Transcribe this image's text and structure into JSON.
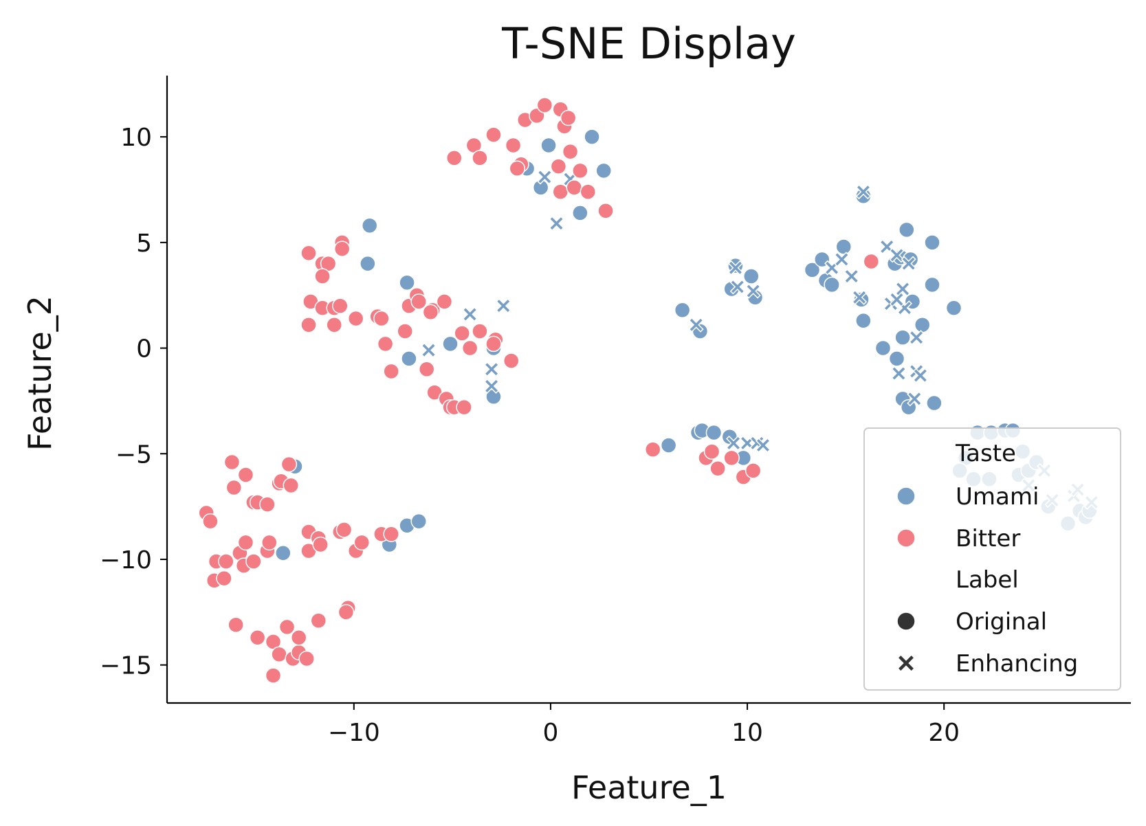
{
  "colors": {
    "umami": "#779ec4",
    "bitter": "#f37b84",
    "axis": "#000000",
    "legend_marker": "#333333"
  },
  "chart_data": {
    "type": "scatter",
    "title": "T-SNE Display",
    "xlabel": "Feature_1",
    "ylabel": "Feature_2",
    "xlim": [
      -19.5,
      29.5
    ],
    "ylim": [
      -16.8,
      12.9
    ],
    "xticks": [
      -10,
      0,
      10,
      20
    ],
    "yticks": [
      10,
      5,
      0,
      -5,
      -10,
      -15
    ],
    "grid": false,
    "legend": {
      "placement": "lower-right",
      "hue_title": "Taste",
      "hue_entries": [
        "Umami",
        "Bitter"
      ],
      "style_title": "Label",
      "style_entries": [
        "Original",
        "Enhancing"
      ]
    },
    "series": [
      {
        "name": "Umami",
        "marker": "Original",
        "points": [
          [
            -9.2,
            5.8
          ],
          [
            -9.3,
            4.0
          ],
          [
            -7.3,
            3.1
          ],
          [
            -7.2,
            -0.5
          ],
          [
            -5.1,
            0.2
          ],
          [
            -2.9,
            0.0
          ],
          [
            -2.9,
            -2.3
          ],
          [
            -1.2,
            8.5
          ],
          [
            -0.5,
            7.6
          ],
          [
            -0.1,
            9.6
          ],
          [
            1.5,
            6.4
          ],
          [
            2.1,
            10.0
          ],
          [
            2.7,
            8.4
          ],
          [
            -13.0,
            -5.6
          ],
          [
            -13.6,
            -9.7
          ],
          [
            -8.2,
            -9.3
          ],
          [
            -7.3,
            -8.4
          ],
          [
            -6.7,
            -8.2
          ],
          [
            6.0,
            -4.6
          ],
          [
            7.5,
            -4.0
          ],
          [
            7.7,
            -3.9
          ],
          [
            8.3,
            -4.0
          ],
          [
            9.1,
            -4.2
          ],
          [
            9.8,
            -5.2
          ],
          [
            6.7,
            1.8
          ],
          [
            7.6,
            0.8
          ],
          [
            9.2,
            2.8
          ],
          [
            10.2,
            3.4
          ],
          [
            10.4,
            2.4
          ],
          [
            9.4,
            3.9
          ],
          [
            13.3,
            3.7
          ],
          [
            13.8,
            4.2
          ],
          [
            14.0,
            3.2
          ],
          [
            14.3,
            3.0
          ],
          [
            14.9,
            4.8
          ],
          [
            15.8,
            2.3
          ],
          [
            15.9,
            1.3
          ],
          [
            15.9,
            7.2
          ],
          [
            16.9,
            0.0
          ],
          [
            17.5,
            4.0
          ],
          [
            17.8,
            4.3
          ],
          [
            17.9,
            0.5
          ],
          [
            18.1,
            5.6
          ],
          [
            18.3,
            4.2
          ],
          [
            18.4,
            2.2
          ],
          [
            18.9,
            1.1
          ],
          [
            19.4,
            5.0
          ],
          [
            19.4,
            3.0
          ],
          [
            19.5,
            -2.6
          ],
          [
            20.5,
            1.9
          ],
          [
            17.6,
            -0.5
          ],
          [
            17.9,
            -2.4
          ],
          [
            18.2,
            -2.8
          ],
          [
            21.7,
            -4.0
          ],
          [
            22.4,
            -4.0
          ],
          [
            23.1,
            -3.9
          ],
          [
            23.5,
            -3.9
          ],
          [
            24.0,
            -4.9
          ],
          [
            21.1,
            -5.2
          ],
          [
            20.8,
            -5.8
          ],
          [
            21.5,
            -6.2
          ],
          [
            22.3,
            -6.2
          ],
          [
            23.8,
            -6.0
          ],
          [
            24.3,
            -5.8
          ],
          [
            24.7,
            -5.4
          ],
          [
            25.3,
            -7.5
          ],
          [
            26.3,
            -8.3
          ],
          [
            26.9,
            -7.7
          ],
          [
            27.2,
            -8.0
          ],
          [
            27.4,
            -7.7
          ]
        ]
      },
      {
        "name": "Umami",
        "marker": "Enhancing",
        "points": [
          [
            -6.2,
            -0.1
          ],
          [
            -4.1,
            1.6
          ],
          [
            -3.0,
            -1.0
          ],
          [
            -3.0,
            -1.8
          ],
          [
            -2.4,
            2.0
          ],
          [
            -0.3,
            8.1
          ],
          [
            0.3,
            5.9
          ],
          [
            1.0,
            8.0
          ],
          [
            7.4,
            1.1
          ],
          [
            9.4,
            3.8
          ],
          [
            9.5,
            2.9
          ],
          [
            9.3,
            -4.5
          ],
          [
            10.0,
            -4.5
          ],
          [
            10.5,
            -4.5
          ],
          [
            10.8,
            -4.6
          ],
          [
            10.3,
            2.7
          ],
          [
            14.3,
            3.8
          ],
          [
            14.8,
            4.2
          ],
          [
            15.3,
            3.4
          ],
          [
            15.7,
            2.4
          ],
          [
            15.9,
            7.4
          ],
          [
            17.1,
            4.8
          ],
          [
            17.3,
            2.1
          ],
          [
            17.6,
            4.4
          ],
          [
            17.9,
            2.8
          ],
          [
            18.0,
            1.9
          ],
          [
            18.2,
            4.0
          ],
          [
            18.6,
            0.5
          ],
          [
            18.6,
            -1.1
          ],
          [
            18.8,
            -1.3
          ],
          [
            18.5,
            -2.4
          ],
          [
            17.7,
            -1.2
          ],
          [
            24.3,
            -6.5
          ],
          [
            25.1,
            -5.8
          ],
          [
            25.5,
            -7.2
          ],
          [
            26.6,
            -7.0
          ],
          [
            26.8,
            -6.7
          ],
          [
            27.5,
            -7.3
          ],
          [
            17.6,
            2.3
          ]
        ]
      },
      {
        "name": "Bitter",
        "marker": "Original",
        "points": [
          [
            -4.9,
            9.0
          ],
          [
            -3.9,
            9.6
          ],
          [
            -3.6,
            9.0
          ],
          [
            -2.9,
            10.1
          ],
          [
            -1.9,
            9.6
          ],
          [
            -1.5,
            8.7
          ],
          [
            -1.7,
            8.5
          ],
          [
            -1.3,
            10.8
          ],
          [
            -0.7,
            11.0
          ],
          [
            -0.3,
            11.5
          ],
          [
            0.5,
            11.3
          ],
          [
            0.7,
            10.5
          ],
          [
            0.9,
            10.9
          ],
          [
            1.0,
            9.3
          ],
          [
            0.4,
            8.6
          ],
          [
            1.5,
            8.4
          ],
          [
            0.5,
            7.4
          ],
          [
            1.2,
            7.6
          ],
          [
            1.9,
            7.4
          ],
          [
            2.8,
            6.5
          ],
          [
            -12.3,
            4.5
          ],
          [
            -11.6,
            4.0
          ],
          [
            -11.3,
            4.0
          ],
          [
            -11.6,
            3.4
          ],
          [
            -10.6,
            5.0
          ],
          [
            -10.6,
            4.7
          ],
          [
            -12.2,
            2.2
          ],
          [
            -11.6,
            1.9
          ],
          [
            -11.0,
            1.9
          ],
          [
            -10.7,
            2.0
          ],
          [
            -12.3,
            1.1
          ],
          [
            -11.0,
            1.1
          ],
          [
            -9.9,
            1.4
          ],
          [
            -8.8,
            1.5
          ],
          [
            -8.6,
            1.4
          ],
          [
            -7.2,
            2.0
          ],
          [
            -6.8,
            2.5
          ],
          [
            -6.7,
            2.2
          ],
          [
            -6.0,
            1.8
          ],
          [
            -6.1,
            1.7
          ],
          [
            -5.4,
            2.2
          ],
          [
            -7.4,
            0.8
          ],
          [
            -8.4,
            0.2
          ],
          [
            -8.1,
            -1.1
          ],
          [
            -6.3,
            -1.0
          ],
          [
            -4.5,
            0.7
          ],
          [
            -4.1,
            0.0
          ],
          [
            -3.6,
            0.8
          ],
          [
            -2.8,
            0.4
          ],
          [
            -2.9,
            0.2
          ],
          [
            -2.0,
            -0.6
          ],
          [
            -5.9,
            -2.1
          ],
          [
            -5.3,
            -2.4
          ],
          [
            -5.1,
            -2.8
          ],
          [
            -4.9,
            -2.8
          ],
          [
            -4.4,
            -2.8
          ],
          [
            16.3,
            4.1
          ],
          [
            5.2,
            -4.8
          ],
          [
            7.9,
            -5.2
          ],
          [
            8.2,
            -4.9
          ],
          [
            8.5,
            -5.7
          ],
          [
            9.2,
            -5.2
          ],
          [
            9.8,
            -6.1
          ],
          [
            10.3,
            -5.8
          ],
          [
            -16.2,
            -5.4
          ],
          [
            -16.1,
            -6.6
          ],
          [
            -15.5,
            -6.0
          ],
          [
            -15.1,
            -7.3
          ],
          [
            -14.9,
            -7.3
          ],
          [
            -14.4,
            -7.4
          ],
          [
            -13.8,
            -6.4
          ],
          [
            -13.7,
            -6.3
          ],
          [
            -13.3,
            -5.5
          ],
          [
            -13.2,
            -6.5
          ],
          [
            -17.5,
            -7.8
          ],
          [
            -17.3,
            -8.2
          ],
          [
            -17.0,
            -10.1
          ],
          [
            -17.1,
            -11.0
          ],
          [
            -16.6,
            -10.9
          ],
          [
            -16.5,
            -10.1
          ],
          [
            -15.8,
            -9.7
          ],
          [
            -15.5,
            -9.2
          ],
          [
            -15.6,
            -10.3
          ],
          [
            -15.1,
            -10.1
          ],
          [
            -14.4,
            -9.6
          ],
          [
            -14.3,
            -9.2
          ],
          [
            -12.3,
            -8.7
          ],
          [
            -12.3,
            -9.6
          ],
          [
            -11.8,
            -9.0
          ],
          [
            -11.7,
            -9.3
          ],
          [
            -10.7,
            -8.7
          ],
          [
            -10.5,
            -8.6
          ],
          [
            -9.9,
            -9.6
          ],
          [
            -9.6,
            -9.2
          ],
          [
            -8.6,
            -8.8
          ],
          [
            -8.1,
            -8.8
          ],
          [
            -16.0,
            -13.1
          ],
          [
            -14.9,
            -13.7
          ],
          [
            -14.1,
            -13.9
          ],
          [
            -13.8,
            -14.5
          ],
          [
            -13.4,
            -13.2
          ],
          [
            -13.1,
            -14.7
          ],
          [
            -12.8,
            -14.4
          ],
          [
            -12.8,
            -13.7
          ],
          [
            -12.4,
            -14.7
          ],
          [
            -14.1,
            -15.5
          ],
          [
            -11.8,
            -12.9
          ],
          [
            -10.3,
            -12.3
          ],
          [
            -10.4,
            -12.5
          ]
        ]
      }
    ]
  }
}
